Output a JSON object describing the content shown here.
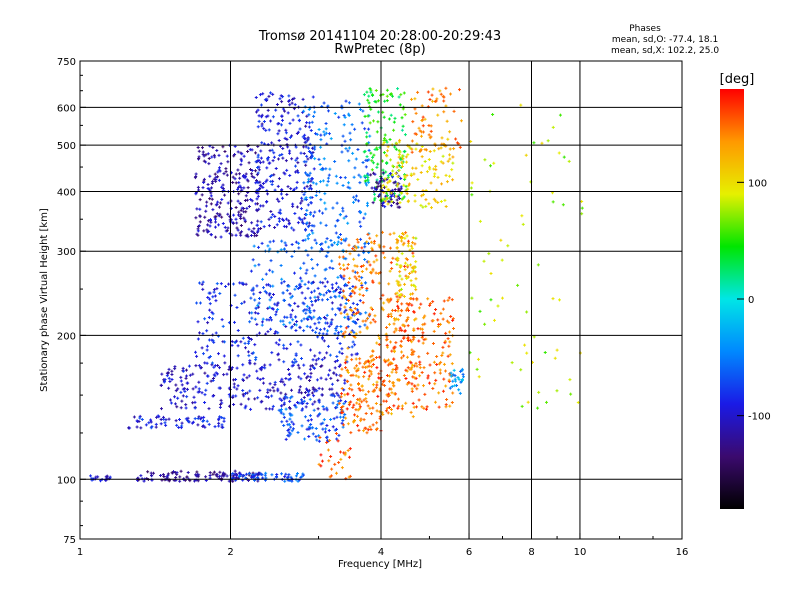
{
  "chart_data": {
    "type": "scatter",
    "title": "Tromsø 20141104 20:28:00-20:29:43",
    "subtitle": "RwPretec (8p)",
    "phase_header": "Phases",
    "phase_stats": [
      "mean, sd,O: -77.4, 18.1",
      "mean, sd,X: 102.2, 25.0"
    ],
    "xlabel": "Frequency [MHz]",
    "ylabel": "Stationary phase Virtual Height [km]",
    "x_scale": "log",
    "y_scale": "log",
    "xlim": [
      1,
      16
    ],
    "ylim": [
      75,
      750
    ],
    "x_ticks": [
      1,
      2,
      4,
      6,
      8,
      10,
      16
    ],
    "y_ticks": [
      75,
      100,
      200,
      300,
      400,
      500,
      600,
      750
    ],
    "x_grid": [
      2,
      4,
      6,
      8,
      10
    ],
    "y_grid": [
      100,
      200,
      300,
      400,
      500,
      600
    ],
    "grid": true,
    "colorbar": {
      "label": "[deg]",
      "range": [
        -180,
        180
      ],
      "ticks": [
        100,
        0,
        -100
      ],
      "colors": [
        "#000000",
        "#3b0a6e",
        "#1a1ae6",
        "#0088ff",
        "#00e6e6",
        "#00e600",
        "#e6f000",
        "#ff9900",
        "#ff0000"
      ]
    },
    "series": [
      {
        "x_range": [
          1.03,
          1.15
        ],
        "y_range": [
          99,
          102
        ],
        "phase": -95,
        "count": 20
      },
      {
        "x_range": [
          1.3,
          2.3
        ],
        "y_range": [
          99,
          104
        ],
        "phase": -118,
        "count": 120
      },
      {
        "x_range": [
          2.0,
          2.8
        ],
        "y_range": [
          99,
          103
        ],
        "phase": -70,
        "count": 60
      },
      {
        "x_range": [
          1.25,
          2.0
        ],
        "y_range": [
          128,
          136
        ],
        "phase": -90,
        "count": 70
      },
      {
        "x_range": [
          1.45,
          3.4
        ],
        "y_range": [
          140,
          175
        ],
        "phase": -100,
        "count": 280
      },
      {
        "x_range": [
          1.7,
          3.6
        ],
        "y_range": [
          175,
          260
        ],
        "phase": -85,
        "count": 300
      },
      {
        "x_range": [
          2.2,
          3.8
        ],
        "y_range": [
          200,
          320
        ],
        "phase": -60,
        "count": 200
      },
      {
        "x_range": [
          2.5,
          3.4
        ],
        "y_range": [
          120,
          150
        ],
        "phase": -70,
        "count": 110
      },
      {
        "x_range": [
          1.7,
          2.3
        ],
        "y_range": [
          320,
          500
        ],
        "phase": -112,
        "count": 260
      },
      {
        "x_range": [
          2.25,
          2.95
        ],
        "y_range": [
          330,
          650
        ],
        "phase": -95,
        "count": 260
      },
      {
        "x_range": [
          2.8,
          3.8
        ],
        "y_range": [
          300,
          620
        ],
        "phase": -55,
        "count": 200
      },
      {
        "x_range": [
          3.7,
          4.5
        ],
        "y_range": [
          380,
          660
        ],
        "phase": 40,
        "count": 140
      },
      {
        "x_range": [
          3.8,
          4.4
        ],
        "y_range": [
          370,
          440
        ],
        "phase": -110,
        "count": 70
      },
      {
        "x_range": [
          4.0,
          5.6
        ],
        "y_range": [
          370,
          520
        ],
        "phase": 105,
        "count": 130
      },
      {
        "x_range": [
          4.6,
          5.8
        ],
        "y_range": [
          480,
          660
        ],
        "phase": 140,
        "count": 70
      },
      {
        "x_range": [
          3.3,
          4.7
        ],
        "y_range": [
          135,
          330
        ],
        "phase": 140,
        "count": 300
      },
      {
        "x_range": [
          3.3,
          4.0
        ],
        "y_range": [
          125,
          180
        ],
        "phase": 150,
        "count": 90
      },
      {
        "x_range": [
          4.1,
          5.6
        ],
        "y_range": [
          140,
          240
        ],
        "phase": 150,
        "count": 220
      },
      {
        "x_range": [
          4.3,
          4.7
        ],
        "y_range": [
          240,
          330
        ],
        "phase": 100,
        "count": 60
      },
      {
        "x_range": [
          5.5,
          5.9
        ],
        "y_range": [
          150,
          170
        ],
        "phase": -40,
        "count": 25
      },
      {
        "x_range": [
          3.0,
          3.5
        ],
        "y_range": [
          100,
          125
        ],
        "phase": 150,
        "count": 30
      },
      {
        "x_range": [
          6.0,
          10.2
        ],
        "y_range": [
          140,
          620
        ],
        "phase": 80,
        "count": 70
      }
    ]
  }
}
